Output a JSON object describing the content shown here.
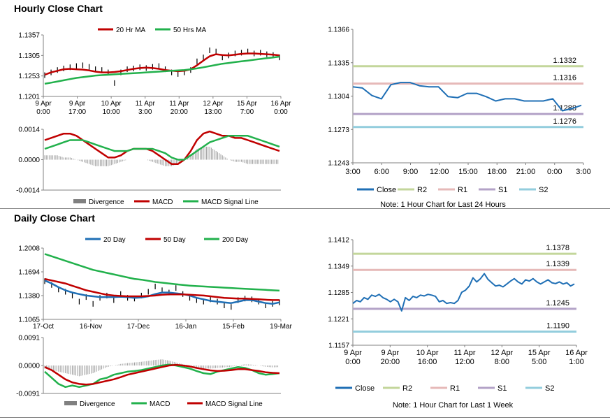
{
  "sections": {
    "hourly_title": "Hourly Close Chart",
    "daily_title": "Daily Close Chart"
  },
  "colors": {
    "red": "#c00000",
    "green": "#22b14c",
    "blue": "#1f6fb5",
    "gray": "#808080",
    "r2": "#c3d69b",
    "r1": "#e6b9b8",
    "s1": "#b3a2c7",
    "s2": "#93cddd"
  },
  "chart_data": [
    {
      "id": "hourly_price",
      "type": "line",
      "ylim": [
        1.1201,
        1.1357
      ],
      "y_ticks": [
        "1.1357",
        "1.1305",
        "1.1253",
        "1.1201"
      ],
      "x_tick_labels": [
        [
          "9 Apr",
          "0:00"
        ],
        [
          "9 Apr",
          "17:00"
        ],
        [
          "10 Apr",
          "10:00"
        ],
        [
          "11 Apr",
          "3:00"
        ],
        [
          "11 Apr",
          "20:00"
        ],
        [
          "12 Apr",
          "13:00"
        ],
        [
          "15 Apr",
          "7:00"
        ],
        [
          "16 Apr",
          "0:00"
        ]
      ],
      "legend": [
        "20 Hr MA",
        "50 Hrs MA"
      ],
      "series": [
        {
          "name": "Close",
          "kind": "bar",
          "values": [
            1.1255,
            1.1262,
            1.1268,
            1.1272,
            1.1275,
            1.1278,
            1.128,
            1.1276,
            1.127,
            1.1268,
            1.1262,
            1.1235,
            1.1262,
            1.127,
            1.1272,
            1.1275,
            1.1273,
            1.1276,
            1.1278,
            1.127,
            1.1262,
            1.1258,
            1.1262,
            1.1268,
            1.129,
            1.13,
            1.1318,
            1.1315,
            1.13,
            1.1305,
            1.131,
            1.1312,
            1.1315,
            1.131,
            1.1312,
            1.1308,
            1.1306,
            1.13
          ]
        },
        {
          "name": "20 Hr MA",
          "values": [
            1.1256,
            1.1262,
            1.1266,
            1.127,
            1.1271,
            1.127,
            1.1269,
            1.1267,
            1.1264,
            1.1262,
            1.1262,
            1.1263,
            1.1265,
            1.1268,
            1.1271,
            1.1273,
            1.1274,
            1.1273,
            1.1271,
            1.1268,
            1.1266,
            1.1265,
            1.1266,
            1.127,
            1.128,
            1.1292,
            1.1303,
            1.1308,
            1.1306,
            1.1305,
            1.1307,
            1.1309,
            1.131,
            1.131,
            1.1309,
            1.1308,
            1.1307,
            1.1305
          ]
        },
        {
          "name": "50 Hrs MA",
          "values": [
            1.1233,
            1.1236,
            1.1239,
            1.1242,
            1.1245,
            1.1248,
            1.125,
            1.1252,
            1.1254,
            1.1255,
            1.1256,
            1.1257,
            1.1258,
            1.1259,
            1.126,
            1.1261,
            1.1262,
            1.1263,
            1.1264,
            1.1265,
            1.1266,
            1.1267,
            1.1268,
            1.127,
            1.1272,
            1.1275,
            1.1278,
            1.1281,
            1.1284,
            1.1286,
            1.1288,
            1.129,
            1.1292,
            1.1294,
            1.1296,
            1.1298,
            1.13,
            1.1302
          ]
        }
      ]
    },
    {
      "id": "hourly_macd",
      "type": "line",
      "ylim": [
        -0.0014,
        0.0014
      ],
      "y_ticks": [
        "0.0014",
        "0.0000",
        "-0.0014"
      ],
      "legend": [
        "Divergence",
        "MACD",
        "MACD Signal Line"
      ],
      "series": [
        {
          "name": "Divergence",
          "kind": "bar",
          "values": [
            0.0002,
            0.0002,
            0.0002,
            0.0001,
            0.0001,
            0.0,
            -0.0001,
            -0.0002,
            -0.0003,
            -0.0003,
            -0.0003,
            -0.0002,
            -0.0001,
            0.0,
            0.0,
            0.0,
            0.0,
            -0.0001,
            -0.0002,
            -0.0003,
            -0.0003,
            -0.0002,
            0.0,
            0.0002,
            0.0005,
            0.0006,
            0.0006,
            0.0004,
            0.0002,
            0.0,
            -0.0001,
            -0.0001,
            -0.0002,
            -0.0002,
            -0.0002,
            -0.0002,
            -0.0002,
            -0.0002
          ]
        },
        {
          "name": "MACD",
          "values": [
            0.0009,
            0.001,
            0.0011,
            0.0012,
            0.0012,
            0.0011,
            0.0009,
            0.0007,
            0.0005,
            0.0003,
            0.0001,
            0.0001,
            0.0002,
            0.0004,
            0.0005,
            0.0005,
            0.0005,
            0.0004,
            0.0002,
            0.0,
            -0.0002,
            -0.0002,
            0.0,
            0.0004,
            0.0009,
            0.0012,
            0.0013,
            0.0012,
            0.0011,
            0.0011,
            0.001,
            0.001,
            0.0009,
            0.0008,
            0.0007,
            0.0006,
            0.0005,
            0.0004
          ]
        },
        {
          "name": "MACD Signal Line",
          "values": [
            0.0005,
            0.0006,
            0.0007,
            0.0008,
            0.0009,
            0.0009,
            0.0009,
            0.0008,
            0.0007,
            0.0006,
            0.0005,
            0.0004,
            0.0004,
            0.0004,
            0.0005,
            0.0005,
            0.0005,
            0.0005,
            0.0004,
            0.0003,
            0.0001,
            0.0,
            0.0,
            0.0002,
            0.0004,
            0.0006,
            0.0008,
            0.0009,
            0.001,
            0.0011,
            0.0011,
            0.0011,
            0.0011,
            0.001,
            0.0009,
            0.0008,
            0.0007,
            0.0006
          ]
        }
      ]
    },
    {
      "id": "hourly_24h",
      "type": "line",
      "ylim": [
        1.1243,
        1.1366
      ],
      "y_ticks": [
        "1.1366",
        "1.1335",
        "1.1304",
        "1.1273",
        "1.1243"
      ],
      "x_ticks": [
        "3:00",
        "6:00",
        "9:00",
        "12:00",
        "15:00",
        "18:00",
        "21:00",
        "0:00",
        "3:00"
      ],
      "legend": [
        "Close",
        "R2",
        "R1",
        "S1",
        "S2"
      ],
      "note": "Note: 1 Hour Chart for Last 24 Hours",
      "levels": [
        {
          "name": "R2",
          "value": 1.1332,
          "label": "1.1332"
        },
        {
          "name": "R1",
          "value": 1.1316,
          "label": "1.1316"
        },
        {
          "name": "S1",
          "value": 1.1288,
          "label": "1.1288"
        },
        {
          "name": "S2",
          "value": 1.1276,
          "label": "1.1276"
        }
      ],
      "series": [
        {
          "name": "Close",
          "x": [
            0,
            1,
            2,
            3,
            4,
            5,
            6,
            7,
            8,
            9,
            10,
            11,
            12,
            13,
            14,
            15,
            16,
            17,
            18,
            19,
            20,
            21,
            22,
            23,
            24
          ],
          "values": [
            1.1313,
            1.1312,
            1.1305,
            1.1302,
            1.1315,
            1.1317,
            1.1317,
            1.1314,
            1.1313,
            1.1313,
            1.1304,
            1.1303,
            1.1307,
            1.1307,
            1.1304,
            1.13,
            1.1302,
            1.1302,
            1.13,
            1.13,
            1.13,
            1.1302,
            1.1291,
            1.1293,
            1.1296
          ]
        }
      ]
    },
    {
      "id": "daily_price",
      "type": "line",
      "ylim": [
        1.1065,
        1.2008
      ],
      "y_ticks": [
        "1.2008",
        "1.1694",
        "1.1380",
        "1.1065"
      ],
      "x_ticks": [
        "17-Oct",
        "16-Nov",
        "17-Dec",
        "16-Jan",
        "15-Feb",
        "19-Mar"
      ],
      "legend": [
        "20 Day",
        "50 Day",
        "200 Day"
      ],
      "series": [
        {
          "name": "Close",
          "kind": "bar",
          "values": [
            1.157,
            1.152,
            1.146,
            1.143,
            1.138,
            1.13,
            1.136,
            1.127,
            1.135,
            1.138,
            1.132,
            1.14,
            1.135,
            1.134,
            1.138,
            1.143,
            1.15,
            1.145,
            1.142,
            1.148,
            1.14,
            1.135,
            1.132,
            1.13,
            1.133,
            1.13,
            1.125,
            1.123,
            1.132,
            1.134,
            1.133,
            1.13,
            1.125,
            1.127,
            1.129
          ]
        },
        {
          "name": "20 Day",
          "values": [
            1.158,
            1.154,
            1.149,
            1.145,
            1.142,
            1.14,
            1.138,
            1.137,
            1.136,
            1.136,
            1.136,
            1.1365,
            1.136,
            1.135,
            1.1355,
            1.137,
            1.14,
            1.142,
            1.142,
            1.141,
            1.14,
            1.138,
            1.135,
            1.133,
            1.131,
            1.13,
            1.129,
            1.128,
            1.13,
            1.132,
            1.132,
            1.13,
            1.128,
            1.127,
            1.129
          ]
        },
        {
          "name": "50 Day",
          "values": [
            1.16,
            1.158,
            1.156,
            1.154,
            1.151,
            1.148,
            1.145,
            1.143,
            1.141,
            1.139,
            1.138,
            1.1375,
            1.137,
            1.137,
            1.137,
            1.1375,
            1.138,
            1.139,
            1.1395,
            1.1395,
            1.1395,
            1.139,
            1.1385,
            1.138,
            1.137,
            1.136,
            1.135,
            1.1345,
            1.134,
            1.134,
            1.1335,
            1.133,
            1.1325,
            1.132,
            1.132
          ]
        },
        {
          "name": "200 Day",
          "values": [
            1.193,
            1.19,
            1.187,
            1.184,
            1.181,
            1.178,
            1.175,
            1.172,
            1.17,
            1.168,
            1.166,
            1.164,
            1.162,
            1.16,
            1.159,
            1.1575,
            1.156,
            1.155,
            1.154,
            1.153,
            1.152,
            1.1512,
            1.1505,
            1.15,
            1.1495,
            1.149,
            1.1485,
            1.148,
            1.1475,
            1.147,
            1.1465,
            1.146,
            1.1455,
            1.145,
            1.1445
          ]
        }
      ]
    },
    {
      "id": "daily_macd",
      "type": "line",
      "ylim": [
        -0.0091,
        0.0091
      ],
      "y_ticks": [
        "0.0091",
        "0.0000",
        "-0.0091"
      ],
      "legend": [
        "Divergence",
        "MACD",
        "MACD Signal Line"
      ],
      "series": [
        {
          "name": "Divergence",
          "kind": "bar",
          "values": [
            -0.001,
            -0.0015,
            -0.002,
            -0.0025,
            -0.003,
            -0.0035,
            -0.003,
            -0.0025,
            -0.0015,
            -0.0005,
            0.0,
            0.0005,
            0.0008,
            0.001,
            0.0012,
            0.0015,
            0.0018,
            0.002,
            0.0016,
            0.001,
            0.0004,
            0.0,
            -0.0006,
            -0.001,
            -0.001,
            -0.0008,
            -0.0006,
            -0.0004,
            0.0,
            0.0004,
            0.0003,
            0.0,
            -0.0004,
            -0.0006,
            -0.0005
          ]
        },
        {
          "name": "MACD",
          "values": [
            -0.002,
            -0.004,
            -0.006,
            -0.007,
            -0.0065,
            -0.007,
            -0.0065,
            -0.006,
            -0.0045,
            -0.004,
            -0.003,
            -0.0025,
            -0.002,
            -0.0018,
            -0.0015,
            -0.001,
            -0.0005,
            0.0,
            0.0003,
            0.0,
            -0.0005,
            -0.001,
            -0.0018,
            -0.0025,
            -0.0028,
            -0.002,
            -0.0015,
            -0.001,
            -0.0005,
            -0.0008,
            -0.0015,
            -0.0025,
            -0.003,
            -0.0028,
            -0.0025
          ]
        },
        {
          "name": "MACD Signal Line",
          "values": [
            -0.0005,
            -0.0015,
            -0.003,
            -0.0045,
            -0.0055,
            -0.006,
            -0.0062,
            -0.006,
            -0.0055,
            -0.005,
            -0.0045,
            -0.0038,
            -0.003,
            -0.0025,
            -0.002,
            -0.0015,
            -0.001,
            -0.0005,
            0.0,
            0.0002,
            0.0,
            -0.0003,
            -0.0008,
            -0.0012,
            -0.0016,
            -0.0018,
            -0.0017,
            -0.0015,
            -0.0012,
            -0.0012,
            -0.0015,
            -0.0018,
            -0.0022,
            -0.0024,
            -0.0025
          ]
        }
      ]
    },
    {
      "id": "hourly_week",
      "type": "line",
      "ylim": [
        1.1157,
        1.1412
      ],
      "y_ticks": [
        "1.1412",
        "1.1349",
        "1.1285",
        "1.1221",
        "1.1157"
      ],
      "x_tick_labels": [
        [
          "9 Apr",
          "0:00"
        ],
        [
          "9 Apr",
          "20:00"
        ],
        [
          "10 Apr",
          "16:00"
        ],
        [
          "11 Apr",
          "12:00"
        ],
        [
          "12 Apr",
          "8:00"
        ],
        [
          "15 Apr",
          "5:00"
        ],
        [
          "16 Apr",
          "1:00"
        ]
      ],
      "legend": [
        "Close",
        "R2",
        "R1",
        "S1",
        "S2"
      ],
      "note": "Note: 1 Hour Chart for Last 1 Week",
      "levels": [
        {
          "name": "R2",
          "value": 1.1378,
          "label": "1.1378"
        },
        {
          "name": "R1",
          "value": 1.1339,
          "label": "1.1339"
        },
        {
          "name": "S1",
          "value": 1.1245,
          "label": "1.1245"
        },
        {
          "name": "S2",
          "value": 1.119,
          "label": "1.1190"
        }
      ],
      "series": [
        {
          "name": "Close",
          "x": [
            0,
            1,
            2,
            3,
            4,
            5,
            6,
            7,
            8,
            9,
            10,
            11,
            12,
            13,
            14,
            15,
            16,
            17,
            18,
            19,
            20,
            21,
            22,
            23,
            24,
            25,
            26,
            27,
            28,
            29,
            30,
            31,
            32,
            33,
            34,
            35,
            36,
            37,
            38,
            39,
            40,
            41,
            42,
            43,
            44,
            45,
            46,
            47,
            48,
            49,
            50,
            51,
            52,
            53,
            54,
            55,
            56,
            57,
            58,
            59
          ],
          "values": [
            1.1258,
            1.1265,
            1.1262,
            1.1272,
            1.1268,
            1.1278,
            1.1275,
            1.128,
            1.1272,
            1.1268,
            1.1262,
            1.1268,
            1.1262,
            1.124,
            1.1272,
            1.1265,
            1.1275,
            1.1272,
            1.1278,
            1.1276,
            1.128,
            1.1278,
            1.1275,
            1.1262,
            1.1265,
            1.1258,
            1.126,
            1.1258,
            1.1265,
            1.1285,
            1.129,
            1.13,
            1.132,
            1.131,
            1.1318,
            1.133,
            1.1316,
            1.1308,
            1.13,
            1.1302,
            1.1298,
            1.1305,
            1.1312,
            1.1318,
            1.131,
            1.1305,
            1.1315,
            1.1312,
            1.1318,
            1.131,
            1.1305,
            1.131,
            1.1315,
            1.1308,
            1.1306,
            1.131,
            1.1305,
            1.1308,
            1.13,
            1.1305
          ]
        }
      ]
    }
  ]
}
